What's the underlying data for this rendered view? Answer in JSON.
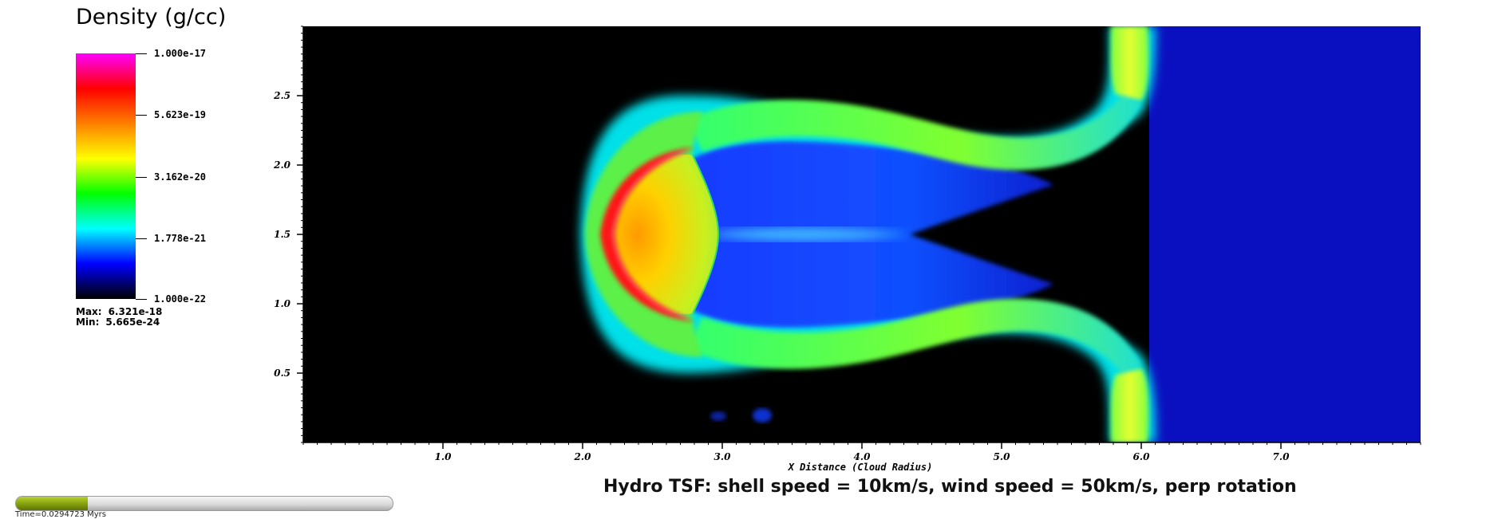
{
  "legend": {
    "title": "Density (g/cc)",
    "tick_labels": [
      "1.000e-17",
      "5.623e-19",
      "3.162e-20",
      "1.778e-21",
      "1.000e-22"
    ],
    "max_label": "Max:",
    "max_value": "6.321e-18",
    "min_label": "Min:",
    "min_value": "5.665e-24",
    "colormap": [
      "#000000",
      "#0000ff",
      "#00ffff",
      "#00ff00",
      "#ffff00",
      "#ff8000",
      "#ff0000",
      "#ff00ff"
    ]
  },
  "chart_data": {
    "type": "heatmap",
    "xlabel": "X Distance (Cloud Radius)",
    "ylabel": "",
    "xlim": [
      0.0,
      8.0
    ],
    "ylim": [
      0.0,
      3.0
    ],
    "x_tick_values": [
      1.0,
      2.0,
      3.0,
      4.0,
      5.0,
      6.0,
      7.0
    ],
    "x_tick_labels": [
      "1.0",
      "2.0",
      "3.0",
      "4.0",
      "5.0",
      "6.0",
      "7.0"
    ],
    "y_tick_values": [
      0.5,
      1.0,
      1.5,
      2.0,
      2.5
    ],
    "y_tick_labels": [
      "0.5",
      "1.0",
      "1.5",
      "2.0",
      "2.5"
    ],
    "background_color": "#000000",
    "wind_color": "#0a10c0",
    "features": [
      {
        "name": "bow shell",
        "x_range": [
          2.0,
          2.8
        ],
        "y_range": [
          0.75,
          2.2
        ],
        "color": "#ff1010"
      },
      {
        "name": "cloud core",
        "x_range": [
          2.2,
          2.95
        ],
        "y_range": [
          0.9,
          2.1
        ],
        "color": "#ffd000"
      },
      {
        "name": "wind front",
        "x_position": 5.9,
        "y_range": [
          0.0,
          3.0
        ],
        "color": "#d8ff20"
      }
    ]
  },
  "caption": "Hydro TSF: shell speed = 10km/s, wind speed = 50km/s, perp rotation",
  "progress": {
    "fraction": 0.19,
    "time_label": "Time=0.0294723 Myrs",
    "fill_color": "#7f9a0d"
  }
}
